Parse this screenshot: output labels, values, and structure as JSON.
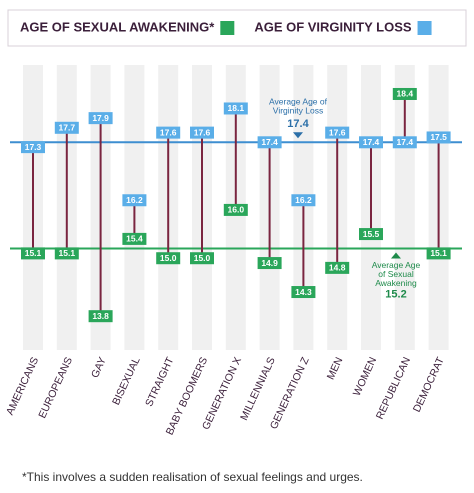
{
  "chart_data": {
    "type": "dumbbell",
    "categories": [
      "AMERICANS",
      "EUROPEANS",
      "GAY",
      "BISEXUAL",
      "STRAIGHT",
      "BABY BOOMERS",
      "GENERATION X",
      "MILLENNIALS",
      "GENERATION Z",
      "MEN",
      "WOMEN",
      "REPUBLICAN",
      "DEMOCRAT"
    ],
    "series": [
      {
        "name": "AGE OF SEXUAL AWAKENING*",
        "color": "#2aa65a",
        "values": [
          15.1,
          15.1,
          13.8,
          15.4,
          15.0,
          15.0,
          16.0,
          14.9,
          14.3,
          14.8,
          15.5,
          18.4,
          15.1
        ],
        "value_labels": [
          "15.1",
          "15.1",
          "13.8",
          "15.4",
          "15.0",
          "15.0",
          "16.0",
          "14.9",
          "14.3",
          "14.8",
          "15.5",
          "18.4",
          "15.1"
        ]
      },
      {
        "name": "AGE OF VIRGINITY LOSS",
        "color": "#5aaee8",
        "values": [
          17.3,
          17.7,
          17.9,
          16.2,
          17.6,
          17.6,
          18.1,
          17.4,
          16.2,
          17.6,
          17.4,
          17.4,
          17.5
        ],
        "value_labels": [
          "17.3",
          "17.7",
          "17.9",
          "16.2",
          "17.6",
          "17.6",
          "18.1",
          "17.4",
          "16.2",
          "17.6",
          "17.4",
          "17.4",
          "17.5"
        ]
      }
    ],
    "averages": [
      {
        "label": [
          "Average Age of",
          "Virginity Loss"
        ],
        "value": 17.4,
        "color": "#3d8ed0",
        "text_color": "#2b6fa8"
      },
      {
        "label": [
          "Average Age",
          "of Sexual",
          "Awakening"
        ],
        "value": 15.2,
        "color": "#2aa65a",
        "text_color": "#1e8a4a"
      }
    ],
    "ylim": [
      13.1,
      19.0
    ],
    "footnote": "*This involves a sudden realisation of sexual feelings and urges."
  }
}
